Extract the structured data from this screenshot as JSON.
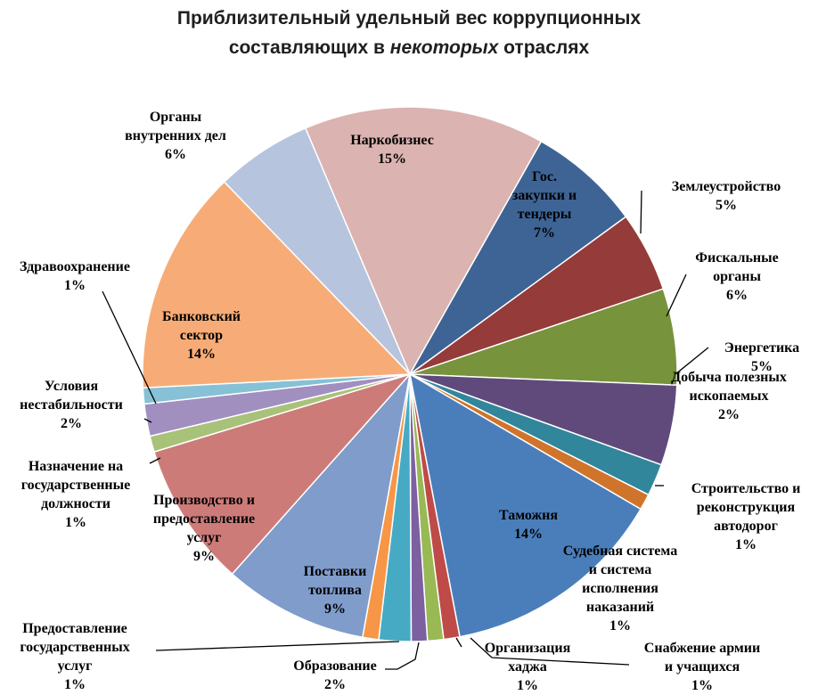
{
  "chart_data": {
    "type": "pie",
    "title": {
      "line1": "Приблизительный удельный вес коррупционных",
      "line2_pre": "составляющих в ",
      "line2_italic": "некоторых",
      "line2_post": " отраслях"
    },
    "slices": [
      {
        "name": "Наркобизнес",
        "value": 15,
        "label": "15%",
        "color": "#DBB3B1"
      },
      {
        "name": "Гос. закупки и тендеры",
        "value": 7,
        "label": "7%",
        "color": "#3E6495"
      },
      {
        "name": "Землеустройство",
        "value": 5,
        "label": "5%",
        "color": "#953B3A"
      },
      {
        "name": "Фискальные органы",
        "value": 6,
        "label": "6%",
        "color": "#77933C"
      },
      {
        "name": "Энергетика",
        "value": 5,
        "label": "5%",
        "color": "#5F4A7B"
      },
      {
        "name": "Добыча полезных ископаемых",
        "value": 2,
        "label": "2%",
        "color": "#31869B"
      },
      {
        "name": "Строительство и реконструкция автодорог",
        "value": 1,
        "label": "1%",
        "color": "#D1742B"
      },
      {
        "name": "Таможня",
        "value": 14,
        "label": "14%",
        "color": "#4A7EBB"
      },
      {
        "name": "Судебная система и система исполнения наказаний",
        "value": 1,
        "label": "1%",
        "color": "#BE4B48"
      },
      {
        "name": "Снабжение армии и учащихся",
        "value": 1,
        "label": "1%",
        "color": "#98B954"
      },
      {
        "name": "Организация хаджа",
        "value": 1,
        "label": "1%",
        "color": "#7D60A0"
      },
      {
        "name": "Образование",
        "value": 2,
        "label": "2%",
        "color": "#46AAC5"
      },
      {
        "name": "Предоставление государственных услуг",
        "value": 1,
        "label": "1%",
        "color": "#F79646"
      },
      {
        "name": "Поставки топлива",
        "value": 9,
        "label": "9%",
        "color": "#7F9CCB"
      },
      {
        "name": "Производство и предоставление услуг",
        "value": 9,
        "label": "9%",
        "color": "#CD7B79"
      },
      {
        "name": "Назначение на государственные должности",
        "value": 1,
        "label": "1%",
        "color": "#A8C27A"
      },
      {
        "name": "Условия нестабильности",
        "value": 2,
        "label": "2%",
        "color": "#A08FBF"
      },
      {
        "name": "Здравоохранение",
        "value": 1,
        "label": "1%",
        "color": "#86C1D6"
      },
      {
        "name": "Банковский сектор",
        "value": 14,
        "label": "14%",
        "color": "#F7AC77"
      },
      {
        "name": "Органы внутренних дел",
        "value": 6,
        "label": "6%",
        "color": "#B7C4DE"
      }
    ],
    "labels": [
      {
        "lines": [
          "Наркобизнес"
        ],
        "pct": "15%"
      },
      {
        "lines": [
          "Гос.",
          "закупки и",
          "тендеры"
        ],
        "pct": "7%"
      },
      {
        "lines": [
          "Землеустройство"
        ],
        "pct": "5%"
      },
      {
        "lines": [
          "Фискальные",
          "органы"
        ],
        "pct": "6%"
      },
      {
        "lines": [
          "Энергетика"
        ],
        "pct": "5%"
      },
      {
        "lines": [
          "Добыча полезных",
          "ископаемых"
        ],
        "pct": "2%"
      },
      {
        "lines": [
          "Строительство и",
          "реконструкция",
          "автодорог"
        ],
        "pct": "1%"
      },
      {
        "lines": [
          "Таможня"
        ],
        "pct": "14%"
      },
      {
        "lines": [
          "Судебная система",
          "и система",
          "исполнения",
          "наказаний"
        ],
        "pct": "1%"
      },
      {
        "lines": [
          "Снабжение армии",
          "и учащихся"
        ],
        "pct": "1%"
      },
      {
        "lines": [
          "Организация",
          "хаджа"
        ],
        "pct": "1%"
      },
      {
        "lines": [
          "Образование"
        ],
        "pct": "2%"
      },
      {
        "lines": [
          "Предоставление",
          "государственных",
          "услуг"
        ],
        "pct": "1%"
      },
      {
        "lines": [
          "Поставки",
          "топлива"
        ],
        "pct": "9%"
      },
      {
        "lines": [
          "Производство и",
          "предоставление",
          "услуг"
        ],
        "pct": "9%"
      },
      {
        "lines": [
          "Назначение на",
          "государственные",
          "должности"
        ],
        "pct": "1%"
      },
      {
        "lines": [
          "Условия",
          "нестабильности"
        ],
        "pct": "2%"
      },
      {
        "lines": [
          "Здравоохранение"
        ],
        "pct": "1%"
      },
      {
        "lines": [
          "Банковский",
          "сектор"
        ],
        "pct": "14%"
      },
      {
        "lines": [
          "Органы",
          "внутренних дел"
        ],
        "pct": "6%"
      }
    ],
    "legend": "none"
  }
}
